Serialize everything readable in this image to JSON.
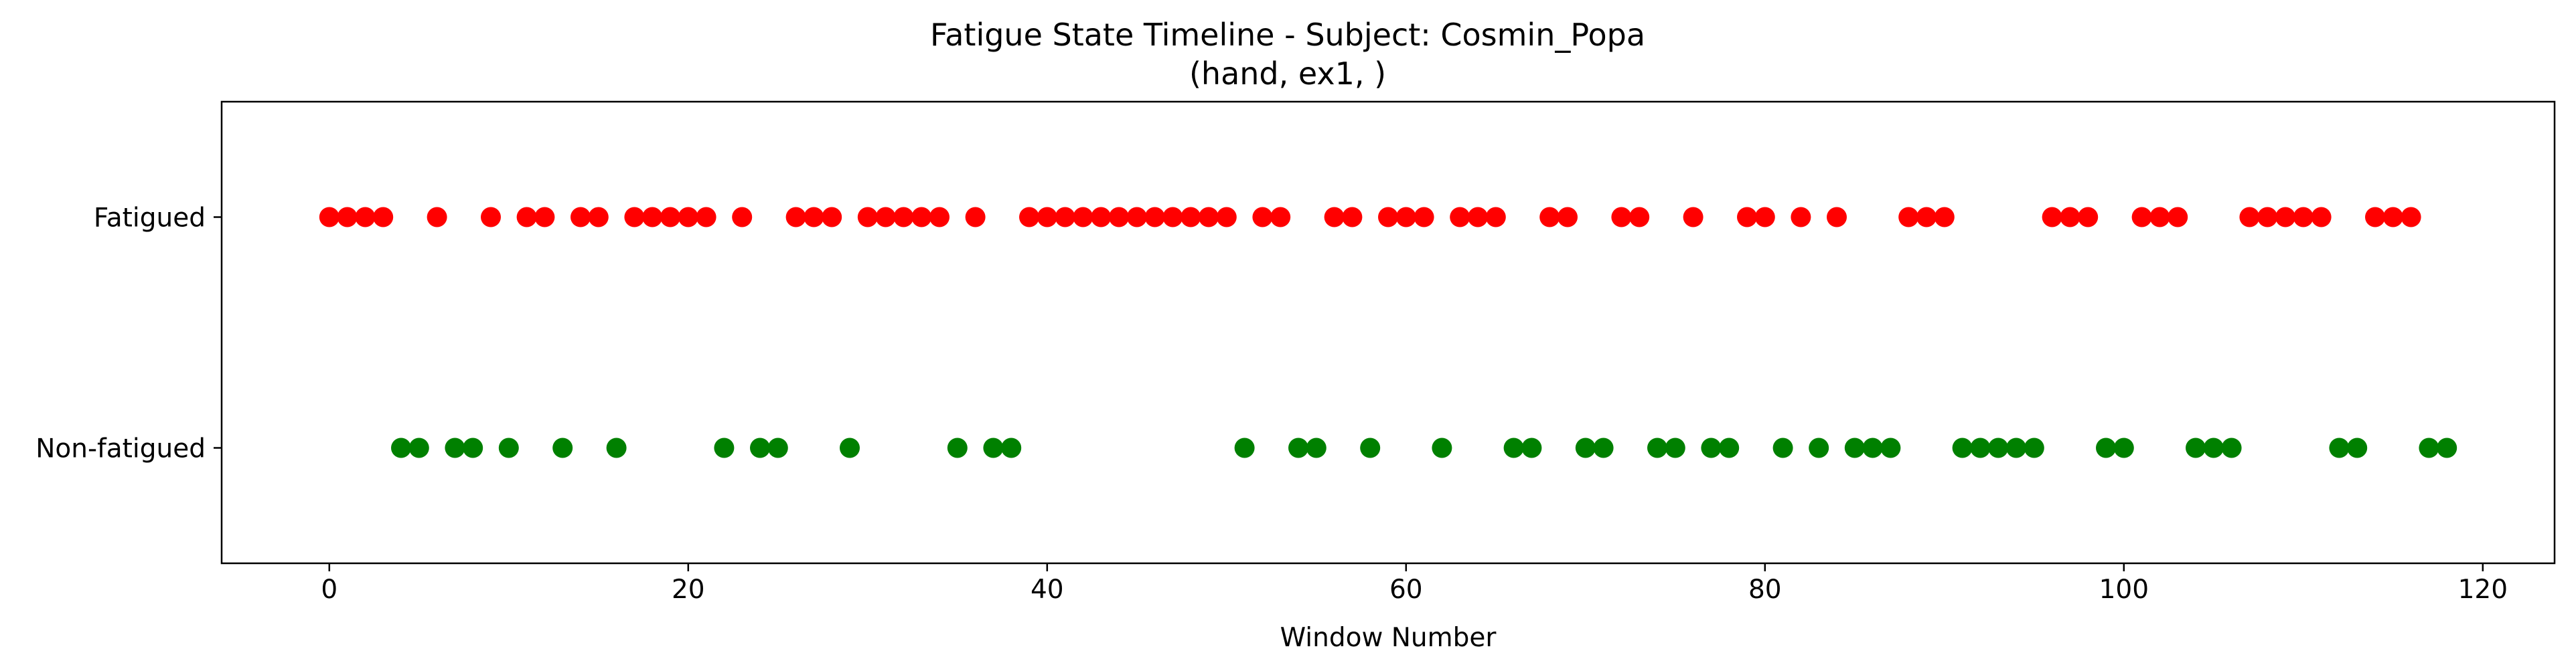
{
  "chart_data": {
    "type": "scatter",
    "title": "Fatigue State Timeline - Subject: Cosmin_Popa",
    "subtitle": "(hand, ex1, )",
    "xlabel": "Window Number",
    "ylabel": "",
    "xlim": [
      -6,
      124
    ],
    "ylim": [
      -0.5,
      1.5
    ],
    "grid": false,
    "x_ticks": [
      0,
      20,
      40,
      60,
      80,
      100,
      120
    ],
    "x_tick_labels": [
      "0",
      "20",
      "40",
      "60",
      "80",
      "100",
      "120"
    ],
    "y_ticks": [
      0,
      1
    ],
    "y_tick_labels": [
      "Non-fatigued",
      "Fatigued"
    ],
    "series": [
      {
        "name": "Fatigued",
        "color": "#ff0000",
        "y": 1,
        "x": [
          0,
          1,
          2,
          3,
          6,
          9,
          11,
          12,
          14,
          15,
          17,
          18,
          19,
          20,
          21,
          23,
          26,
          27,
          28,
          30,
          31,
          32,
          33,
          34,
          36,
          39,
          40,
          41,
          42,
          43,
          44,
          45,
          46,
          47,
          48,
          49,
          50,
          52,
          53,
          56,
          57,
          59,
          60,
          61,
          63,
          64,
          65,
          68,
          69,
          72,
          73,
          76,
          79,
          80,
          82,
          84,
          88,
          89,
          90,
          96,
          97,
          98,
          101,
          102,
          103,
          107,
          108,
          109,
          110,
          111,
          114,
          115,
          116
        ]
      },
      {
        "name": "Non-fatigued",
        "color": "#008000",
        "y": 0,
        "x": [
          4,
          5,
          7,
          8,
          10,
          13,
          16,
          22,
          24,
          25,
          29,
          35,
          37,
          38,
          51,
          54,
          55,
          58,
          62,
          66,
          67,
          70,
          71,
          74,
          75,
          77,
          78,
          81,
          83,
          85,
          86,
          87,
          91,
          92,
          93,
          94,
          95,
          99,
          100,
          104,
          105,
          106,
          112,
          113,
          117,
          118
        ]
      }
    ]
  }
}
